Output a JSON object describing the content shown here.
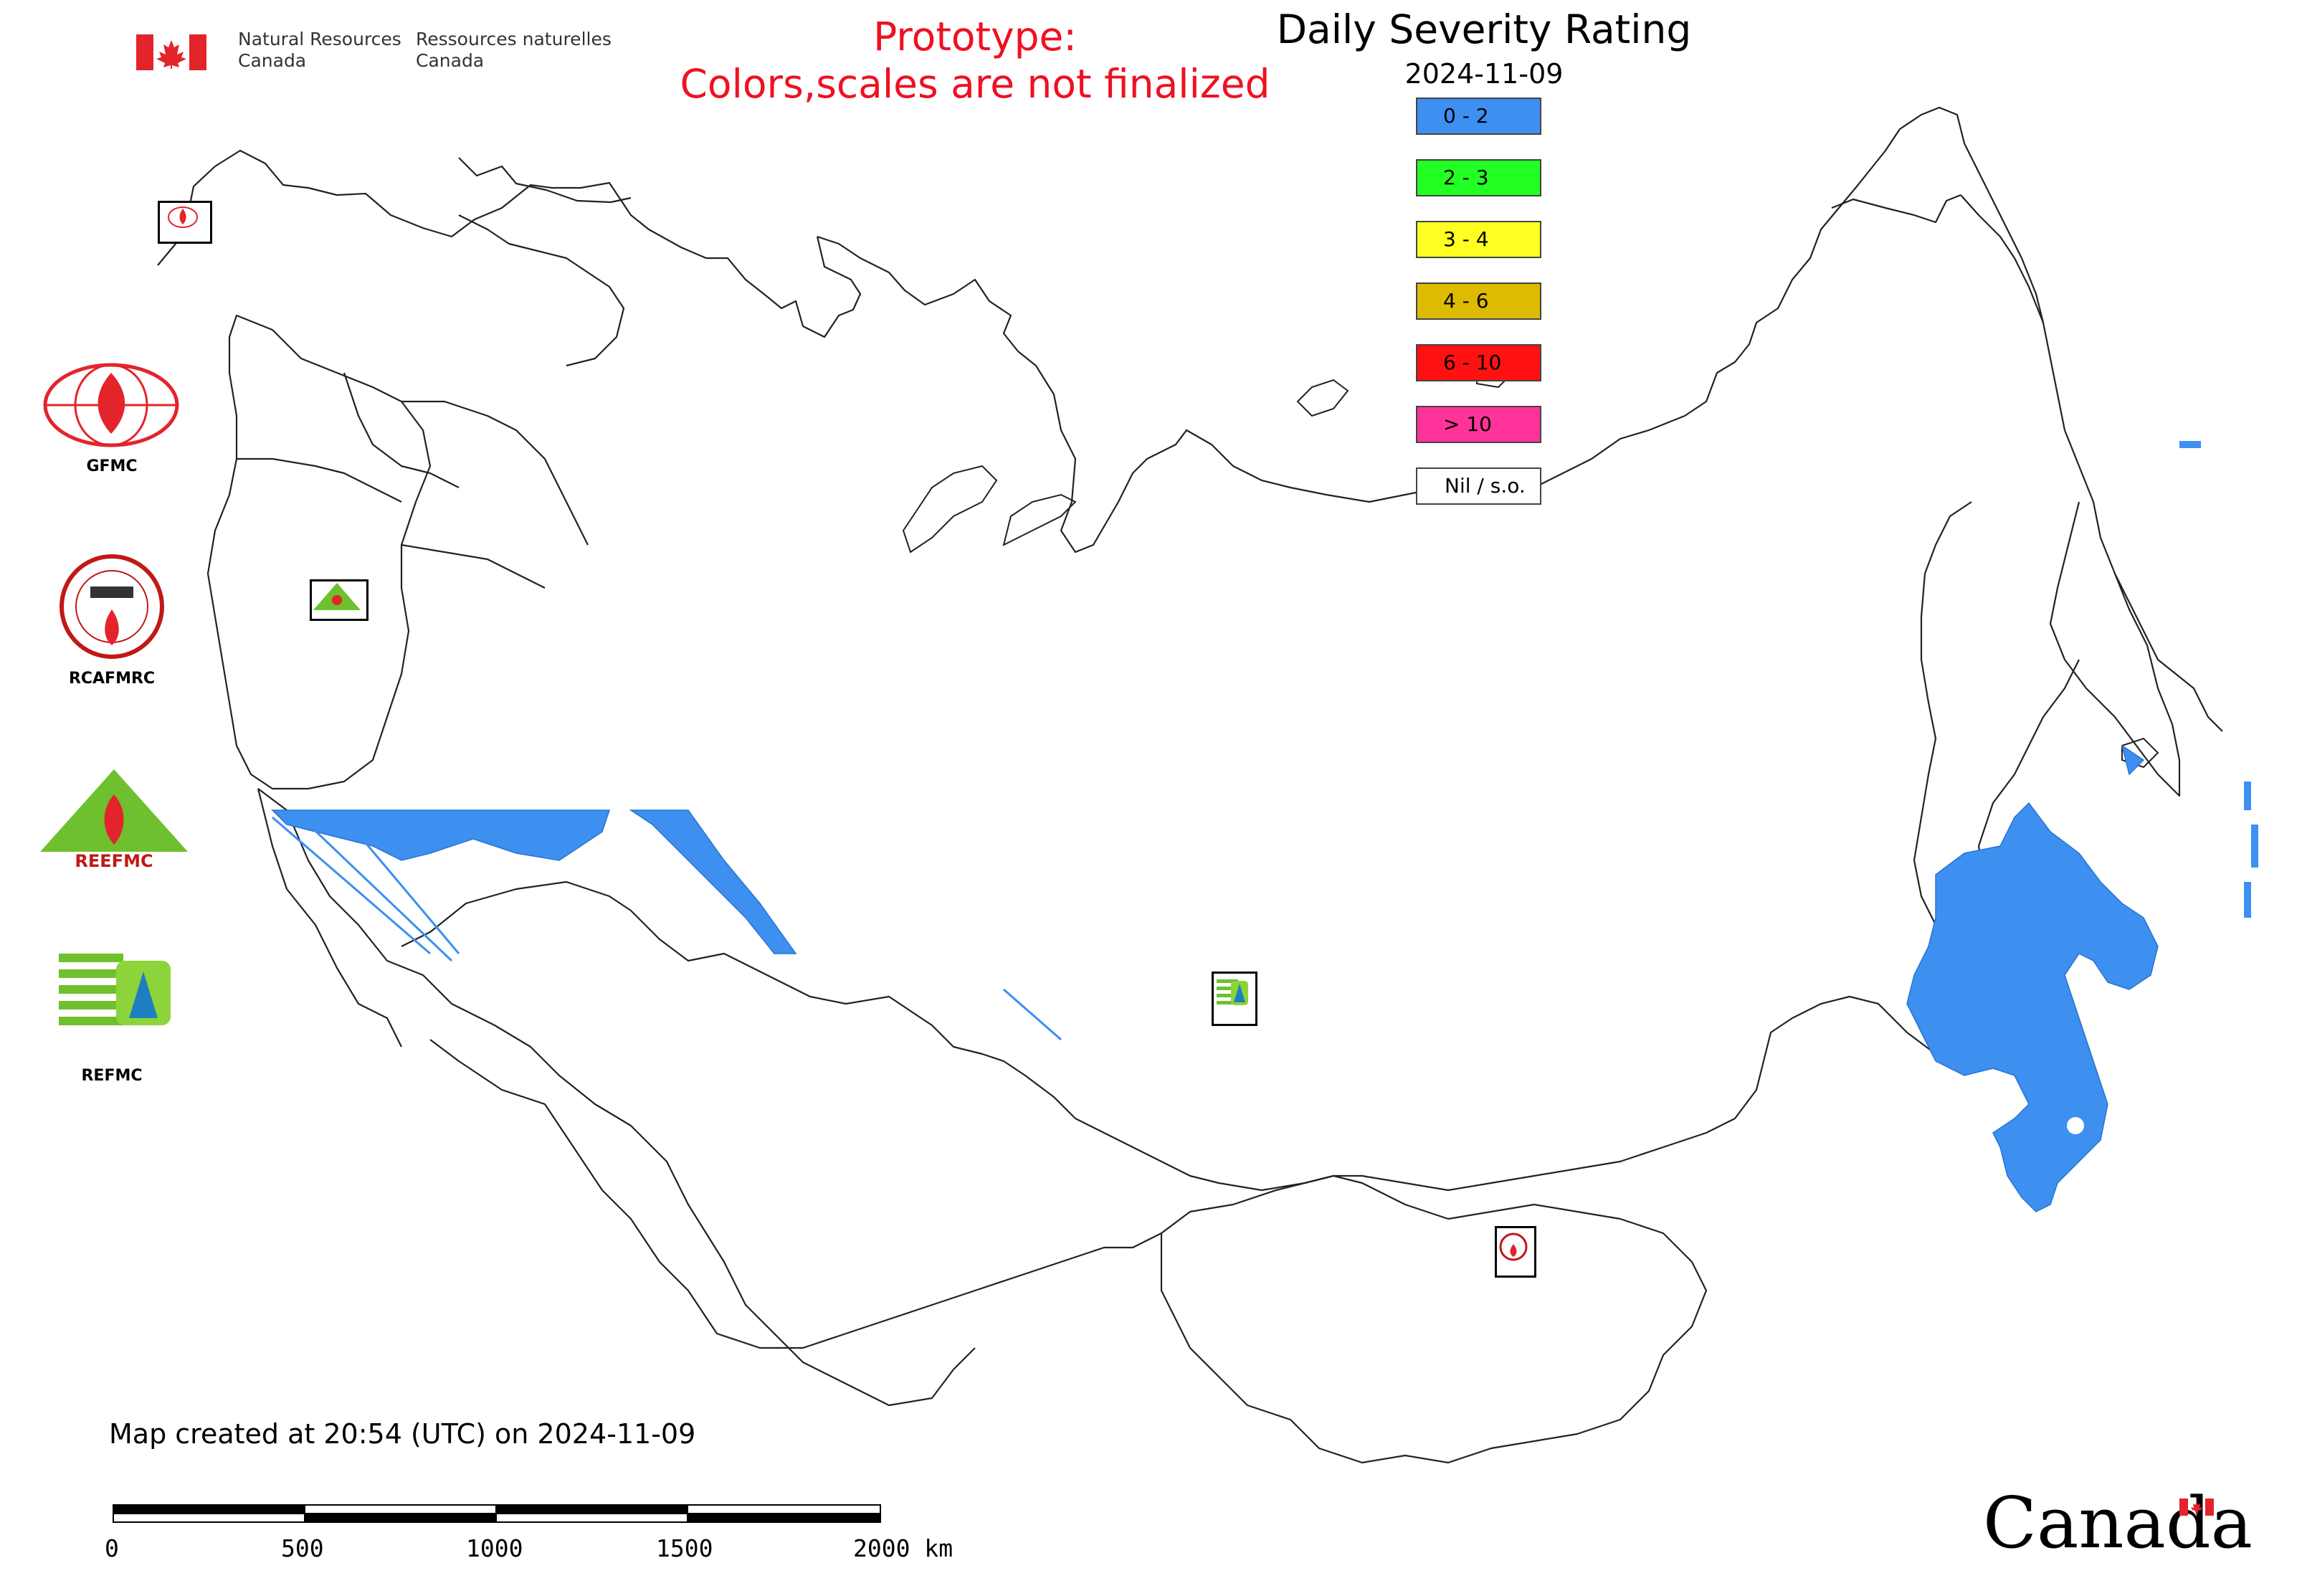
{
  "header": {
    "dept_en_1": "Natural Resources",
    "dept_en_2": "Canada",
    "dept_fr_1": "Ressources naturelles",
    "dept_fr_2": "Canada"
  },
  "notice": {
    "line1": "Prototype:",
    "line2": "Colors,scales are not finalized",
    "color": "#ee1122"
  },
  "title": "Daily Severity Rating",
  "date": "2024-11-09",
  "legend": [
    {
      "label": "0 - 2",
      "color": "#3d8ff0"
    },
    {
      "label": "2 - 3",
      "color": "#22ff22"
    },
    {
      "label": "3 - 4",
      "color": "#ffff22"
    },
    {
      "label": "4 - 6",
      "color": "#ddbb00"
    },
    {
      "label": "6 - 10",
      "color": "#ff1111"
    },
    {
      "label": "> 10",
      "color": "#ff3399"
    },
    {
      "label": "Nil / s.o.",
      "color": "#ffffff"
    }
  ],
  "organizations": [
    {
      "label": "GFMC"
    },
    {
      "label": "RCAFMRC"
    },
    {
      "label": "REEFMC"
    },
    {
      "label": "REFMC"
    }
  ],
  "caption": "Map created at 20:54 (UTC) on 2024-11-09",
  "scale": {
    "labels": [
      "0",
      "500",
      "1000",
      "1500",
      "2000 km"
    ]
  },
  "wordmark": "Canada",
  "colors": {
    "fill_primary": "#3d8ff0",
    "boundary": "#333333",
    "flag_red": "#e3242b"
  }
}
